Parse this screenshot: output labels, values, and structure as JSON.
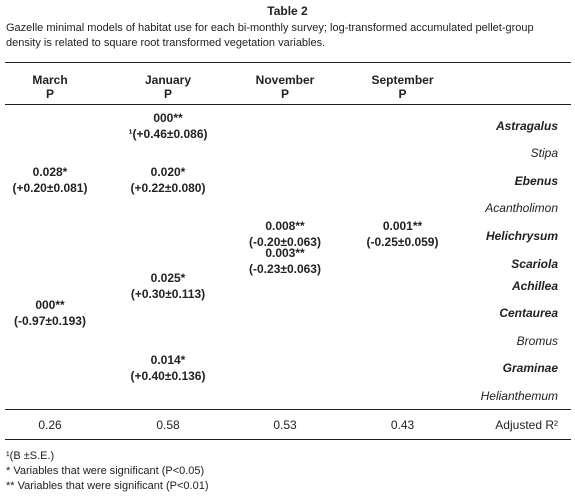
{
  "table": {
    "title": "Table 2",
    "caption": "Gazelle minimal models of habitat use for each bi-monthly survey; log-transformed accumulated pellet-group density is related to square root transformed vegetation variables.",
    "columns": [
      {
        "name": "March",
        "sub": "P"
      },
      {
        "name": "January",
        "sub": "P"
      },
      {
        "name": "November",
        "sub": "P"
      },
      {
        "name": "September",
        "sub": "P"
      }
    ],
    "species": [
      {
        "name": "Astragalus",
        "bold": true
      },
      {
        "name": "Stipa",
        "bold": false
      },
      {
        "name": "Ebenus",
        "bold": true
      },
      {
        "name": "Acantholimon",
        "bold": false
      },
      {
        "name": "Helichrysum",
        "bold": true
      },
      {
        "name": "Scariola",
        "bold": true
      },
      {
        "name": "Achillea",
        "bold": true
      },
      {
        "name": "Centaurea",
        "bold": true
      },
      {
        "name": "Bromus",
        "bold": false
      },
      {
        "name": "Graminae",
        "bold": true
      },
      {
        "name": "Helianthemum",
        "bold": false
      }
    ],
    "cells": {
      "jan_astragalus_p": "000**",
      "jan_astragalus_b": "¹(+0.46±0.086)",
      "mar_ebenus_p": "0.028*",
      "mar_ebenus_b": "(+0.20±0.081)",
      "jan_ebenus_p": "0.020*",
      "jan_ebenus_b": "(+0.22±0.080)",
      "nov_helichrysum_p": "0.008**",
      "nov_helichrysum_b": "(-0.20±0.063)",
      "nov_scariola_p": "0.003**",
      "nov_scariola_b": "(-0.23±0.063)",
      "sep_helichrysum_p": "0.001**",
      "sep_helichrysum_b": "(-0.25±0.059)",
      "jan_achillea_p": "0.025*",
      "jan_achillea_b": "(+0.30±0.113)",
      "mar_centaurea_p": "000**",
      "mar_centaurea_b": "(-0.97±0.193)",
      "jan_graminae_p": "0.014*",
      "jan_graminae_b": "(+0.40±0.136)"
    },
    "r2": {
      "march": "0.26",
      "january": "0.58",
      "november": "0.53",
      "september": "0.43",
      "label": "Adjusted R²"
    },
    "footnotes": [
      "¹(B ±S.E.)",
      "* Variables that were significant (P<0.05)",
      "** Variables that were significant (P<0.01)"
    ]
  }
}
